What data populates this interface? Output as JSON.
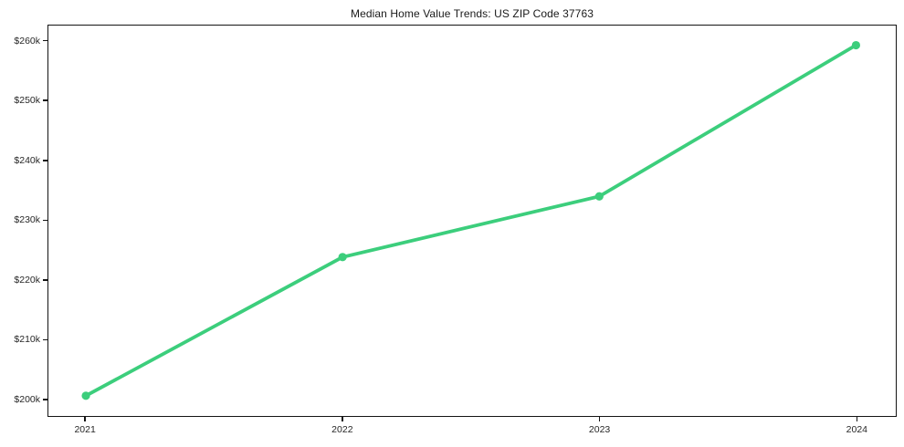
{
  "chart_data": {
    "type": "line",
    "title": "Median Home Value Trends: US ZIP Code 37763",
    "xlabel": "",
    "ylabel": "",
    "x": [
      2021,
      2022,
      2023,
      2024
    ],
    "x_tick_labels": [
      "2021",
      "2022",
      "2023",
      "2024"
    ],
    "values": [
      200500,
      223800,
      234000,
      259400
    ],
    "y_ticks": [
      {
        "value": 200000,
        "label": "$200k"
      },
      {
        "value": 210000,
        "label": "$210k"
      },
      {
        "value": 220000,
        "label": "$220k"
      },
      {
        "value": 230000,
        "label": "$230k"
      },
      {
        "value": 240000,
        "label": "$240k"
      },
      {
        "value": 250000,
        "label": "$250k"
      },
      {
        "value": 260000,
        "label": "$260k"
      }
    ],
    "xlim": [
      2020.854,
      2024.155
    ],
    "ylim": [
      197100,
      262700
    ],
    "grid": false,
    "legend": "none",
    "line_color": "#3cce7c",
    "line_width": 3.8,
    "marker": "circle",
    "marker_radius": 4.6,
    "frame_color": "#141414",
    "background_color": "#ffffff",
    "text_color": "#262626"
  }
}
